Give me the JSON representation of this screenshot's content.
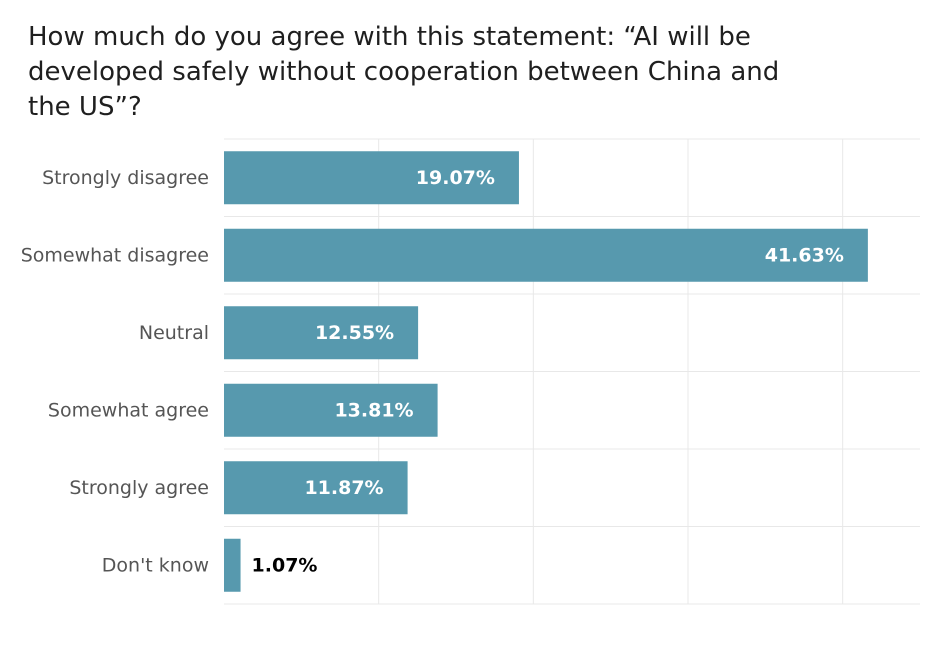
{
  "chart_data": {
    "type": "bar",
    "orientation": "horizontal",
    "title": "How much do you agree with this statement: “AI will be developed safely without cooperation between China and the US”?",
    "categories": [
      "Strongly disagree",
      "Somewhat disagree",
      "Neutral",
      "Somewhat agree",
      "Strongly agree",
      "Don't know"
    ],
    "values": [
      19.07,
      41.63,
      12.55,
      13.81,
      11.87,
      1.07
    ],
    "value_labels": [
      "19.07%",
      "41.63%",
      "12.55%",
      "13.81%",
      "11.87%",
      "1.07%"
    ],
    "xlim": [
      0,
      45
    ],
    "x_gridlines": [
      0,
      10,
      20,
      30,
      40
    ],
    "grid": true,
    "legend": "none",
    "bar_color": "#5799ae",
    "label_inside_color": "#ffffff",
    "label_outside_color": "#000000"
  }
}
